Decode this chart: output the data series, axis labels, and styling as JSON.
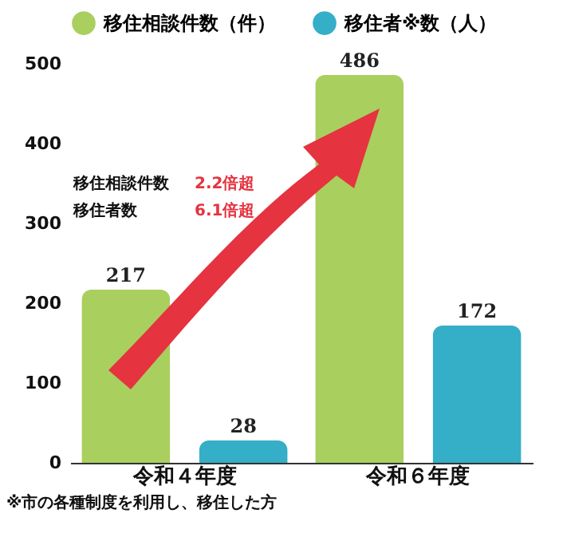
{
  "chart_data": {
    "type": "bar",
    "categories": [
      "令和４年度",
      "令和６年度"
    ],
    "series": [
      {
        "name": "移住相談件数（件）",
        "color": "#a9cf5f",
        "values": [
          217,
          486
        ]
      },
      {
        "name": "移住者※数（人）",
        "color": "#35aec8",
        "values": [
          28,
          172
        ]
      }
    ],
    "ylim": [
      0,
      500
    ],
    "yticks": [
      0,
      100,
      200,
      300,
      400,
      500
    ],
    "grid": false,
    "legend": "top",
    "data_labels": true,
    "annotations": [
      "移住相談件数　2.2倍超",
      "移住者数　　6.1倍超",
      "※市の各種制度を利用し、移住した方"
    ]
  }
}
